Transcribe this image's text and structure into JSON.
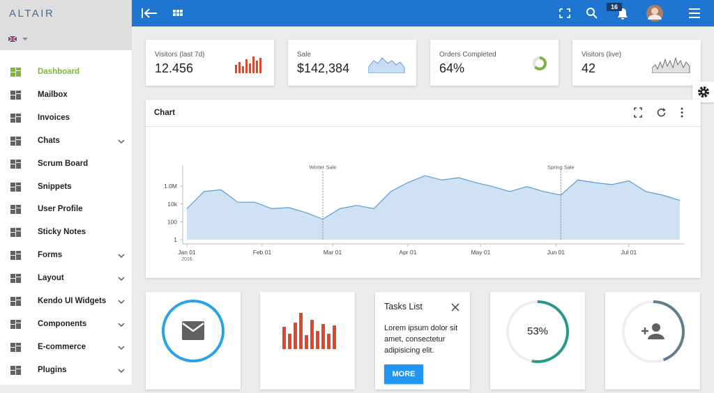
{
  "sidebar": {
    "logo": "ALTAIR",
    "menu": [
      {
        "label": "Dashboard",
        "active": true,
        "expandable": false
      },
      {
        "label": "Mailbox",
        "active": false,
        "expandable": false
      },
      {
        "label": "Invoices",
        "active": false,
        "expandable": false
      },
      {
        "label": "Chats",
        "active": false,
        "expandable": true
      },
      {
        "label": "Scrum Board",
        "active": false,
        "expandable": false
      },
      {
        "label": "Snippets",
        "active": false,
        "expandable": false
      },
      {
        "label": "User Profile",
        "active": false,
        "expandable": false
      },
      {
        "label": "Sticky Notes",
        "active": false,
        "expandable": false
      },
      {
        "label": "Forms",
        "active": false,
        "expandable": true
      },
      {
        "label": "Layout",
        "active": false,
        "expandable": true
      },
      {
        "label": "Kendo UI Widgets",
        "active": false,
        "expandable": true
      },
      {
        "label": "Components",
        "active": false,
        "expandable": true
      },
      {
        "label": "E-commerce",
        "active": false,
        "expandable": true
      },
      {
        "label": "Plugins",
        "active": false,
        "expandable": true
      }
    ]
  },
  "topbar": {
    "notification_count": 16
  },
  "stats": [
    {
      "label": "Visitors (last 7d)",
      "value": "12.456"
    },
    {
      "label": "Sale",
      "value": "$142,384"
    },
    {
      "label": "Orders Completed",
      "value": "64%"
    },
    {
      "label": "Visitors (live)",
      "value": "42"
    }
  ],
  "chart_card": {
    "title": "Chart",
    "chart_data": {
      "type": "area",
      "y_scale": "log",
      "color": "#cfe2f3",
      "line_color": "#5b9bd5",
      "x": [
        "2016-01-01",
        "2016-01-08",
        "2016-01-15",
        "2016-01-22",
        "2016-01-29",
        "2016-02-05",
        "2016-02-12",
        "2016-02-19",
        "2016-02-26",
        "2016-03-04",
        "2016-03-11",
        "2016-03-18",
        "2016-03-25",
        "2016-04-01",
        "2016-04-08",
        "2016-04-15",
        "2016-04-22",
        "2016-04-29",
        "2016-05-06",
        "2016-05-13",
        "2016-05-20",
        "2016-05-27",
        "2016-06-03",
        "2016-06-10",
        "2016-06-17",
        "2016-06-24",
        "2016-07-01",
        "2016-07-08",
        "2016-07-15",
        "2016-07-22"
      ],
      "values": [
        3000,
        250000,
        400000,
        16000,
        16000,
        3000,
        4000,
        1100,
        200,
        3000,
        7000,
        3000,
        250000,
        2500000,
        15000000,
        5000000,
        9000000,
        2500000,
        900000,
        250000,
        900000,
        250000,
        100000,
        5000000,
        2500000,
        1500000,
        4000000,
        250000,
        100000,
        25000
      ],
      "xlim": [
        "2016-01-01",
        "2016-07-22"
      ],
      "ylim": [
        1,
        100000000
      ],
      "xticks": [
        {
          "value": "2016-01-01",
          "label": "Jan 01"
        },
        {
          "value": "2016-02-01",
          "label": "Feb 01"
        },
        {
          "value": "2016-03-01",
          "label": "Mar 01"
        },
        {
          "value": "2016-04-01",
          "label": "Apr 01"
        },
        {
          "value": "2016-05-01",
          "label": "May 01"
        },
        {
          "value": "2016-06-01",
          "label": "Jun 01"
        },
        {
          "value": "2016-07-01",
          "label": "Jul 01"
        }
      ],
      "x_year_label": "2016",
      "yticks": [
        1,
        100,
        {
          "value": 10000,
          "label": "10k"
        },
        {
          "value": 1000000,
          "label": "1.0M"
        }
      ],
      "annotations": [
        {
          "x": "2016-02-26",
          "label": "Winter Sale"
        },
        {
          "x": "2016-06-03",
          "label": "Spring Sale"
        }
      ]
    }
  },
  "tasks": {
    "title": "Tasks List",
    "text": "Lorem ipsum dolor sit amet, consectetur adipisicing elit.",
    "button": "MORE"
  },
  "progress": {
    "label": "53%"
  }
}
